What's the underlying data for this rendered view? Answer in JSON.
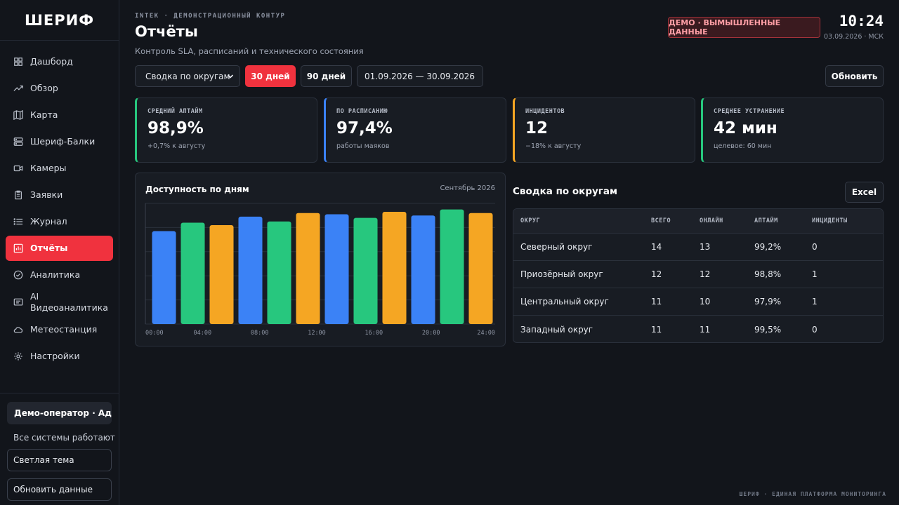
{
  "app": {
    "logo": "ШЕРИФ"
  },
  "sidebar": {
    "items": [
      {
        "label": "Дашборд",
        "icon": "grid-icon"
      },
      {
        "label": "Обзор",
        "icon": "trend-icon"
      },
      {
        "label": "Карта",
        "icon": "map-icon"
      },
      {
        "label": "Шериф-Балки",
        "icon": "server-icon"
      },
      {
        "label": "Камеры",
        "icon": "camera-icon"
      },
      {
        "label": "Заявки",
        "icon": "clipboard-icon"
      },
      {
        "label": "Журнал",
        "icon": "list-icon"
      },
      {
        "label": "Отчёты",
        "icon": "bar-chart-icon",
        "active": true
      },
      {
        "label": "Аналитика",
        "icon": "check-circle-icon"
      },
      {
        "label": "AI Видеоаналитика",
        "icon": "screen-icon"
      },
      {
        "label": "Метеостанция",
        "icon": "cloud-icon"
      },
      {
        "label": "Настройки",
        "icon": "gear-icon"
      }
    ],
    "user": "Демо-оператор · Ад...",
    "status": "Все системы работают",
    "theme_button": "Светлая тема",
    "refresh_button": "Обновить данные"
  },
  "header": {
    "kicker": "INTEK · ДЕМОНСТРАЦИОННЫЙ КОНТУР",
    "title": "Отчёты",
    "subtitle": "Контроль SLA, расписаний и технического состояния",
    "demo_badge": "ДЕМО · ВЫМЫШЛЕННЫЕ ДАННЫЕ",
    "time": "10:24",
    "date": "03.09.2026 · МСК"
  },
  "toolbar": {
    "select_value": "Сводка по округам",
    "btn_30": "30 дней",
    "btn_90": "90 дней",
    "date_range": "01.09.2026 — 30.09.2026",
    "refresh": "Обновить"
  },
  "kpis": [
    {
      "label": "СРЕДНИЙ АПТАЙМ",
      "value": "98,9%",
      "sub": "+0,7% к августу",
      "accent": "#27c77e"
    },
    {
      "label": "ПО РАСПИСАНИЮ",
      "value": "97,4%",
      "sub": "работы маяков",
      "accent": "#3b82f6"
    },
    {
      "label": "ИНЦИДЕНТОВ",
      "value": "12",
      "sub": "−18% к августу",
      "accent": "#f5a623"
    },
    {
      "label": "СРЕДНЕЕ УСТРАНЕНИЕ",
      "value": "42 мин",
      "sub": "целевое: 60 мин",
      "accent": "#27c77e"
    }
  ],
  "chart": {
    "title": "Доступность по дням",
    "month": "Сентябрь 2026"
  },
  "chart_data": {
    "type": "bar",
    "x_ticks": [
      "00:00",
      "04:00",
      "08:00",
      "12:00",
      "16:00",
      "20:00",
      "24:00"
    ],
    "values": [
      77,
      84,
      82,
      89,
      85,
      92,
      91,
      88,
      93,
      90,
      95,
      92
    ],
    "colors": [
      "#3b82f6",
      "#27c77e",
      "#f5a623",
      "#3b82f6",
      "#27c77e",
      "#f5a623",
      "#3b82f6",
      "#27c77e",
      "#f5a623",
      "#3b82f6",
      "#27c77e",
      "#f5a623"
    ],
    "ylim": [
      0,
      100
    ],
    "grid": true
  },
  "summary": {
    "title": "Сводка по округам",
    "excel": "Excel",
    "columns": [
      "ОКРУГ",
      "ВСЕГО",
      "ОНЛАЙН",
      "АПТАЙМ",
      "ИНЦИДЕНТЫ"
    ],
    "rows": [
      [
        "Северный округ",
        "14",
        "13",
        "99,2%",
        "0"
      ],
      [
        "Приозёрный округ",
        "12",
        "12",
        "98,8%",
        "1"
      ],
      [
        "Центральный округ",
        "11",
        "10",
        "97,9%",
        "1"
      ],
      [
        "Западный округ",
        "11",
        "11",
        "99,5%",
        "0"
      ]
    ]
  },
  "footer": "ШЕРИФ · ЕДИНАЯ ПЛАТФОРМА МОНИТОРИНГА"
}
